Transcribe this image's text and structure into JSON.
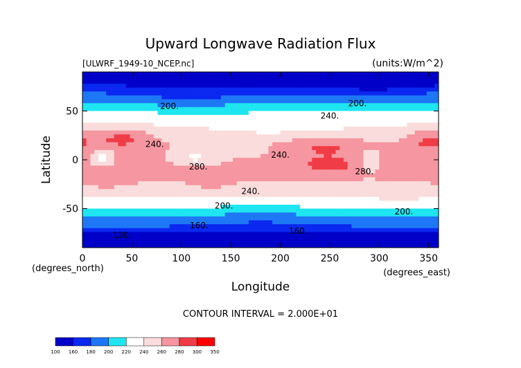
{
  "chart_data": {
    "type": "heatmap",
    "title": "Upward Longwave Radiation Flux",
    "file_label": "[ULWRF_1949-10_NCEP.nc]",
    "units_label": "(units:W/m^2)",
    "xlabel": "Longitude",
    "ylabel": "Latitude",
    "x_unit_label": "(degrees_east)",
    "y_unit_label": "(degrees_north)",
    "xlim": [
      0,
      360
    ],
    "ylim": [
      -90,
      90
    ],
    "x_ticks": [
      0,
      50,
      100,
      150,
      200,
      250,
      300,
      350
    ],
    "y_ticks": [
      -50,
      0,
      50
    ],
    "contour_interval_label": "CONTOUR INTERVAL = 2.000E+01",
    "colorbar": {
      "levels": [
        100,
        160,
        180,
        200,
        220,
        240,
        260,
        280,
        300,
        350
      ],
      "colors": [
        "#0000c8",
        "#0a28f0",
        "#1e78f5",
        "#1ee6f0",
        "#ffffff",
        "#fadcdc",
        "#f596a0",
        "#f03c46",
        "#ff0000"
      ]
    },
    "contour_labels": [
      {
        "text": "200.",
        "lon": 88,
        "lat": 52
      },
      {
        "text": "200.",
        "lon": 278,
        "lat": 55
      },
      {
        "text": "240.",
        "lon": 250,
        "lat": 42
      },
      {
        "text": "240.",
        "lon": 73,
        "lat": 13
      },
      {
        "text": "240.",
        "lon": 200,
        "lat": 2
      },
      {
        "text": "280.",
        "lon": 117,
        "lat": -10
      },
      {
        "text": "280.",
        "lon": 285,
        "lat": -15
      },
      {
        "text": "240.",
        "lon": 170,
        "lat": -35
      },
      {
        "text": "200.",
        "lon": 143,
        "lat": -50
      },
      {
        "text": "200.",
        "lon": 325,
        "lat": -56
      },
      {
        "text": "160.",
        "lon": 118,
        "lat": -70
      },
      {
        "text": "160.",
        "lon": 218,
        "lat": -76
      },
      {
        "text": "120.",
        "lon": 40,
        "lat": -80
      }
    ]
  }
}
